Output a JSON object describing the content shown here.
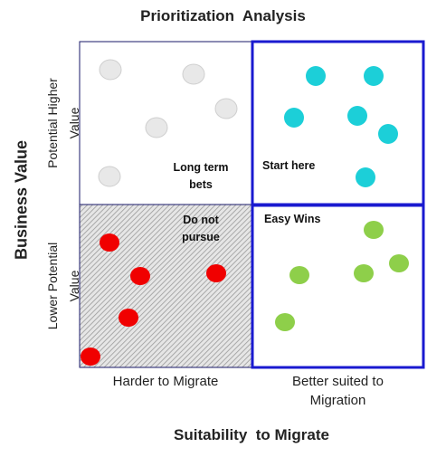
{
  "title": "Prioritization  Analysis",
  "axes": {
    "x_title": "Suitability  to Migrate",
    "y_title": "Business Value",
    "x_left_label": "Harder to Migrate",
    "x_right_label_lines": [
      "Better suited to",
      "Migration"
    ],
    "y_top_label_lines": [
      "Potential Higher",
      "Value"
    ],
    "y_bottom_label_lines": [
      "Lower Potential",
      "Value"
    ]
  },
  "quadrants": {
    "top_left": {
      "label_lines": [
        "Long term",
        "bets"
      ],
      "dot_color": "#e8e8e8"
    },
    "top_right": {
      "label_lines": [
        "Start here"
      ],
      "dot_color": "#1ccfd8"
    },
    "bottom_left": {
      "label_lines": [
        "Do not",
        "pursue"
      ],
      "dot_color": "#f00000"
    },
    "bottom_right": {
      "label_lines": [
        "Easy Wins"
      ],
      "dot_color": "#8ecf4a"
    }
  },
  "colors": {
    "highlight_border": "#1a1ad0",
    "plain_border": "#1a1a6a",
    "hatch_fill": "#bdbdbd"
  }
}
